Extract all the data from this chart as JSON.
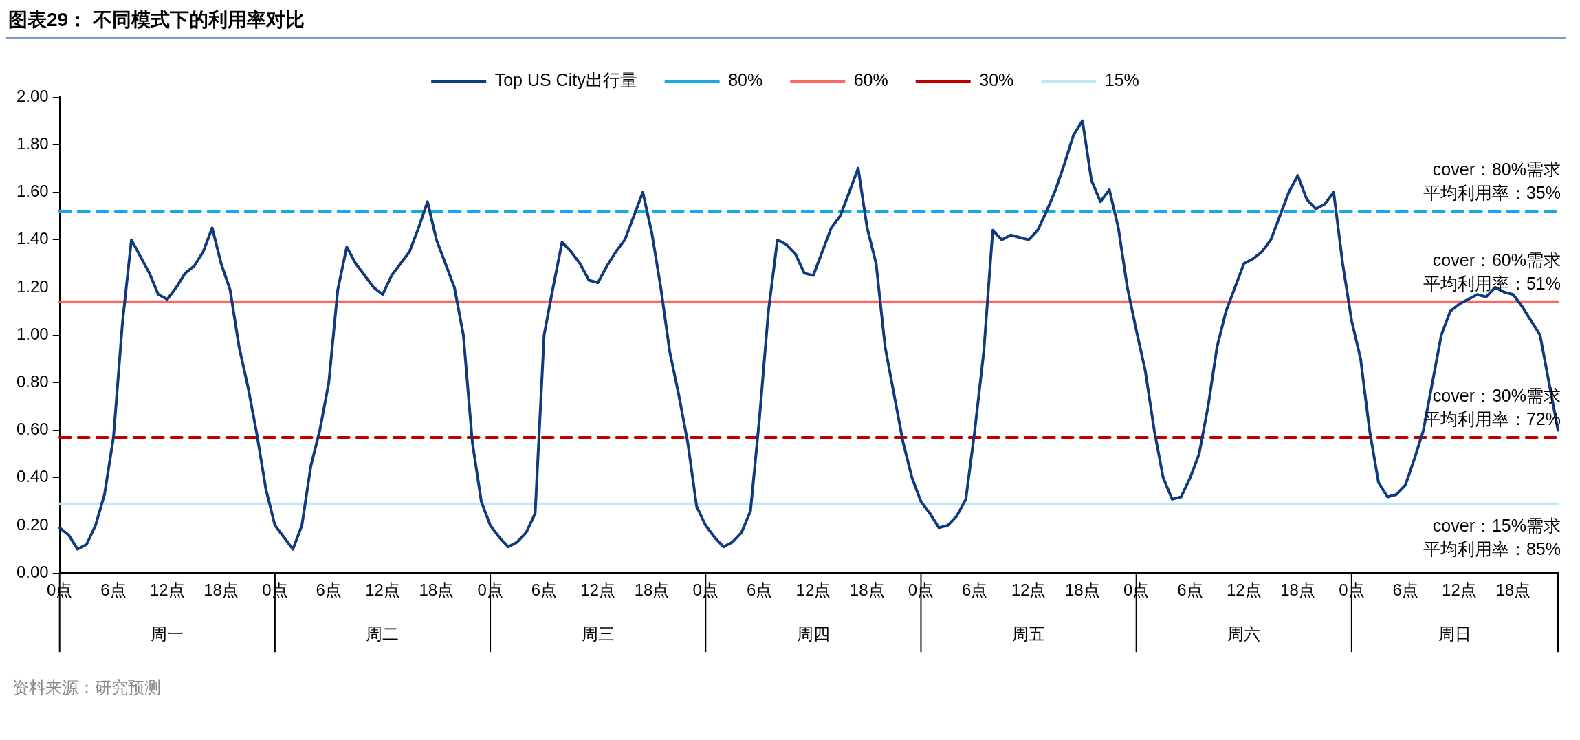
{
  "chart_data": {
    "type": "line",
    "title": "图表29：  不同模式下的利用率对比",
    "categories": [
      "0点",
      null,
      null,
      null,
      null,
      null,
      "6点",
      null,
      null,
      null,
      null,
      null,
      "12点",
      null,
      null,
      null,
      null,
      null,
      "18点",
      null,
      null,
      null,
      null,
      null,
      "0点",
      null,
      null,
      null,
      null,
      null,
      "6点",
      null,
      null,
      null,
      null,
      null,
      "12点",
      null,
      null,
      null,
      null,
      null,
      "18点",
      null,
      null,
      null,
      null,
      null,
      "0点",
      null,
      null,
      null,
      null,
      null,
      "6点",
      null,
      null,
      null,
      null,
      null,
      "12点",
      null,
      null,
      null,
      null,
      null,
      "18点",
      null,
      null,
      null,
      null,
      null,
      "0点",
      null,
      null,
      null,
      null,
      null,
      "6点",
      null,
      null,
      null,
      null,
      null,
      "12点",
      null,
      null,
      null,
      null,
      null,
      "18点",
      null,
      null,
      null,
      null,
      null,
      "0点",
      null,
      null,
      null,
      null,
      null,
      "6点",
      null,
      null,
      null,
      null,
      null,
      "12点",
      null,
      null,
      null,
      null,
      null,
      "18点",
      null,
      null,
      null,
      null,
      null,
      "0点",
      null,
      null,
      null,
      null,
      null,
      "6点",
      null,
      null,
      null,
      null,
      null,
      "12点",
      null,
      null,
      null,
      null,
      null,
      "18点",
      null,
      null,
      null,
      null,
      null,
      "0点",
      null,
      null,
      null,
      null,
      null,
      "6点",
      null,
      null,
      null,
      null,
      null,
      "12点",
      null,
      null,
      null,
      null,
      null,
      "18点",
      null,
      null,
      null,
      null,
      null
    ],
    "series": [
      {
        "name": "Top US City出行量",
        "color": "#0f3b7d",
        "values": [
          0.19,
          0.16,
          0.1,
          0.12,
          0.2,
          0.33,
          0.57,
          1.05,
          1.4,
          1.33,
          1.26,
          1.17,
          1.15,
          1.2,
          1.26,
          1.29,
          1.35,
          1.45,
          1.3,
          1.19,
          0.95,
          0.78,
          0.58,
          0.35,
          0.2,
          0.15,
          0.1,
          0.2,
          0.45,
          0.6,
          0.8,
          1.19,
          1.37,
          1.3,
          1.25,
          1.2,
          1.17,
          1.25,
          1.3,
          1.35,
          1.45,
          1.56,
          1.4,
          1.3,
          1.2,
          1.0,
          0.55,
          0.3,
          0.2,
          0.15,
          0.11,
          0.13,
          0.17,
          0.25,
          1.0,
          1.2,
          1.39,
          1.35,
          1.3,
          1.23,
          1.22,
          1.29,
          1.35,
          1.4,
          1.5,
          1.6,
          1.43,
          1.2,
          0.93,
          0.75,
          0.55,
          0.28,
          0.2,
          0.15,
          0.11,
          0.13,
          0.17,
          0.26,
          0.65,
          1.1,
          1.4,
          1.38,
          1.34,
          1.26,
          1.25,
          1.35,
          1.45,
          1.5,
          1.6,
          1.7,
          1.45,
          1.3,
          0.95,
          0.75,
          0.55,
          0.4,
          0.3,
          0.25,
          0.19,
          0.2,
          0.24,
          0.31,
          0.6,
          0.93,
          1.44,
          1.4,
          1.42,
          1.41,
          1.4,
          1.44,
          1.52,
          1.61,
          1.72,
          1.84,
          1.9,
          1.65,
          1.56,
          1.61,
          1.45,
          1.2,
          1.02,
          0.85,
          0.6,
          0.4,
          0.31,
          0.32,
          0.4,
          0.5,
          0.7,
          0.95,
          1.1,
          1.2,
          1.3,
          1.32,
          1.35,
          1.4,
          1.5,
          1.6,
          1.67,
          1.57,
          1.53,
          1.55,
          1.6,
          1.3,
          1.06,
          0.9,
          0.6,
          0.38,
          0.32,
          0.33,
          0.37,
          0.48,
          0.6,
          0.8,
          1.0,
          1.1,
          1.13,
          1.15,
          1.17,
          1.16,
          1.2,
          1.18,
          1.17,
          1.12,
          1.06,
          1.0,
          0.8,
          0.6
        ]
      },
      {
        "name": "80%",
        "color": "#1aa7e6",
        "line_style": "dashed",
        "values": [
          1.52,
          1.52,
          1.52,
          1.52,
          1.52,
          1.52,
          1.52,
          1.52,
          1.52,
          1.52,
          1.52,
          1.52,
          1.52,
          1.52,
          1.52,
          1.52,
          1.52,
          1.52,
          1.52,
          1.52,
          1.52,
          1.52,
          1.52,
          1.52,
          1.52,
          1.52,
          1.52,
          1.52,
          1.52,
          1.52,
          1.52,
          1.52,
          1.52,
          1.52,
          1.52,
          1.52,
          1.52,
          1.52,
          1.52,
          1.52,
          1.52,
          1.52,
          1.52,
          1.52,
          1.52,
          1.52,
          1.52,
          1.52,
          1.52,
          1.52,
          1.52,
          1.52,
          1.52,
          1.52,
          1.52,
          1.52,
          1.52,
          1.52,
          1.52,
          1.52,
          1.52,
          1.52,
          1.52,
          1.52,
          1.52,
          1.52,
          1.52,
          1.52,
          1.52,
          1.52,
          1.52,
          1.52,
          1.52,
          1.52,
          1.52,
          1.52,
          1.52,
          1.52,
          1.52,
          1.52,
          1.52,
          1.52,
          1.52,
          1.52,
          1.52,
          1.52,
          1.52,
          1.52,
          1.52,
          1.52,
          1.52,
          1.52,
          1.52,
          1.52,
          1.52,
          1.52,
          1.52,
          1.52,
          1.52,
          1.52,
          1.52,
          1.52,
          1.52,
          1.52,
          1.52,
          1.52,
          1.52,
          1.52,
          1.52,
          1.52,
          1.52,
          1.52,
          1.52,
          1.52,
          1.52,
          1.52,
          1.52,
          1.52,
          1.52,
          1.52,
          1.52,
          1.52,
          1.52,
          1.52,
          1.52,
          1.52,
          1.52,
          1.52,
          1.52,
          1.52,
          1.52,
          1.52,
          1.52,
          1.52,
          1.52,
          1.52,
          1.52,
          1.52,
          1.52,
          1.52,
          1.52,
          1.52,
          1.52,
          1.52,
          1.52,
          1.52,
          1.52,
          1.52,
          1.52,
          1.52,
          1.52,
          1.52,
          1.52,
          1.52,
          1.52,
          1.52,
          1.52,
          1.52,
          1.52,
          1.52,
          1.52,
          1.52,
          1.52,
          1.52,
          1.52,
          1.52,
          1.52,
          1.52
        ]
      },
      {
        "name": "60%",
        "color": "#ff6666",
        "line_style": "solid",
        "values": [
          1.14,
          1.14,
          1.14,
          1.14,
          1.14,
          1.14,
          1.14,
          1.14,
          1.14,
          1.14,
          1.14,
          1.14,
          1.14,
          1.14,
          1.14,
          1.14,
          1.14,
          1.14,
          1.14,
          1.14,
          1.14,
          1.14,
          1.14,
          1.14,
          1.14,
          1.14,
          1.14,
          1.14,
          1.14,
          1.14,
          1.14,
          1.14,
          1.14,
          1.14,
          1.14,
          1.14,
          1.14,
          1.14,
          1.14,
          1.14,
          1.14,
          1.14,
          1.14,
          1.14,
          1.14,
          1.14,
          1.14,
          1.14,
          1.14,
          1.14,
          1.14,
          1.14,
          1.14,
          1.14,
          1.14,
          1.14,
          1.14,
          1.14,
          1.14,
          1.14,
          1.14,
          1.14,
          1.14,
          1.14,
          1.14,
          1.14,
          1.14,
          1.14,
          1.14,
          1.14,
          1.14,
          1.14,
          1.14,
          1.14,
          1.14,
          1.14,
          1.14,
          1.14,
          1.14,
          1.14,
          1.14,
          1.14,
          1.14,
          1.14,
          1.14,
          1.14,
          1.14,
          1.14,
          1.14,
          1.14,
          1.14,
          1.14,
          1.14,
          1.14,
          1.14,
          1.14,
          1.14,
          1.14,
          1.14,
          1.14,
          1.14,
          1.14,
          1.14,
          1.14,
          1.14,
          1.14,
          1.14,
          1.14,
          1.14,
          1.14,
          1.14,
          1.14,
          1.14,
          1.14,
          1.14,
          1.14,
          1.14,
          1.14,
          1.14,
          1.14,
          1.14,
          1.14,
          1.14,
          1.14,
          1.14,
          1.14,
          1.14,
          1.14,
          1.14,
          1.14,
          1.14,
          1.14,
          1.14,
          1.14,
          1.14,
          1.14,
          1.14,
          1.14,
          1.14,
          1.14,
          1.14,
          1.14,
          1.14,
          1.14,
          1.14,
          1.14,
          1.14,
          1.14,
          1.14,
          1.14,
          1.14,
          1.14,
          1.14,
          1.14,
          1.14,
          1.14,
          1.14,
          1.14,
          1.14,
          1.14,
          1.14,
          1.14,
          1.14,
          1.14,
          1.14,
          1.14,
          1.14,
          1.14
        ]
      },
      {
        "name": "30%",
        "color": "#c00000",
        "line_style": "dashed",
        "values": [
          0.57,
          0.57,
          0.57,
          0.57,
          0.57,
          0.57,
          0.57,
          0.57,
          0.57,
          0.57,
          0.57,
          0.57,
          0.57,
          0.57,
          0.57,
          0.57,
          0.57,
          0.57,
          0.57,
          0.57,
          0.57,
          0.57,
          0.57,
          0.57,
          0.57,
          0.57,
          0.57,
          0.57,
          0.57,
          0.57,
          0.57,
          0.57,
          0.57,
          0.57,
          0.57,
          0.57,
          0.57,
          0.57,
          0.57,
          0.57,
          0.57,
          0.57,
          0.57,
          0.57,
          0.57,
          0.57,
          0.57,
          0.57,
          0.57,
          0.57,
          0.57,
          0.57,
          0.57,
          0.57,
          0.57,
          0.57,
          0.57,
          0.57,
          0.57,
          0.57,
          0.57,
          0.57,
          0.57,
          0.57,
          0.57,
          0.57,
          0.57,
          0.57,
          0.57,
          0.57,
          0.57,
          0.57,
          0.57,
          0.57,
          0.57,
          0.57,
          0.57,
          0.57,
          0.57,
          0.57,
          0.57,
          0.57,
          0.57,
          0.57,
          0.57,
          0.57,
          0.57,
          0.57,
          0.57,
          0.57,
          0.57,
          0.57,
          0.57,
          0.57,
          0.57,
          0.57,
          0.57,
          0.57,
          0.57,
          0.57,
          0.57,
          0.57,
          0.57,
          0.57,
          0.57,
          0.57,
          0.57,
          0.57,
          0.57,
          0.57,
          0.57,
          0.57,
          0.57,
          0.57,
          0.57,
          0.57,
          0.57,
          0.57,
          0.57,
          0.57,
          0.57,
          0.57,
          0.57,
          0.57,
          0.57,
          0.57,
          0.57,
          0.57,
          0.57,
          0.57,
          0.57,
          0.57,
          0.57,
          0.57,
          0.57,
          0.57,
          0.57,
          0.57,
          0.57,
          0.57,
          0.57,
          0.57,
          0.57,
          0.57,
          0.57,
          0.57,
          0.57,
          0.57,
          0.57,
          0.57,
          0.57,
          0.57,
          0.57,
          0.57,
          0.57,
          0.57,
          0.57,
          0.57,
          0.57,
          0.57,
          0.57,
          0.57,
          0.57,
          0.57,
          0.57,
          0.57,
          0.57,
          0.57
        ]
      },
      {
        "name": "15%",
        "color": "#bfe8f7",
        "line_style": "solid",
        "values": [
          0.29,
          0.29,
          0.29,
          0.29,
          0.29,
          0.29,
          0.29,
          0.29,
          0.29,
          0.29,
          0.29,
          0.29,
          0.29,
          0.29,
          0.29,
          0.29,
          0.29,
          0.29,
          0.29,
          0.29,
          0.29,
          0.29,
          0.29,
          0.29,
          0.29,
          0.29,
          0.29,
          0.29,
          0.29,
          0.29,
          0.29,
          0.29,
          0.29,
          0.29,
          0.29,
          0.29,
          0.29,
          0.29,
          0.29,
          0.29,
          0.29,
          0.29,
          0.29,
          0.29,
          0.29,
          0.29,
          0.29,
          0.29,
          0.29,
          0.29,
          0.29,
          0.29,
          0.29,
          0.29,
          0.29,
          0.29,
          0.29,
          0.29,
          0.29,
          0.29,
          0.29,
          0.29,
          0.29,
          0.29,
          0.29,
          0.29,
          0.29,
          0.29,
          0.29,
          0.29,
          0.29,
          0.29,
          0.29,
          0.29,
          0.29,
          0.29,
          0.29,
          0.29,
          0.29,
          0.29,
          0.29,
          0.29,
          0.29,
          0.29,
          0.29,
          0.29,
          0.29,
          0.29,
          0.29,
          0.29,
          0.29,
          0.29,
          0.29,
          0.29,
          0.29,
          0.29,
          0.29,
          0.29,
          0.29,
          0.29,
          0.29,
          0.29,
          0.29,
          0.29,
          0.29,
          0.29,
          0.29,
          0.29,
          0.29,
          0.29,
          0.29,
          0.29,
          0.29,
          0.29,
          0.29,
          0.29,
          0.29,
          0.29,
          0.29,
          0.29,
          0.29,
          0.29,
          0.29,
          0.29,
          0.29,
          0.29,
          0.29,
          0.29,
          0.29,
          0.29,
          0.29,
          0.29,
          0.29,
          0.29,
          0.29,
          0.29,
          0.29,
          0.29,
          0.29,
          0.29,
          0.29,
          0.29,
          0.29,
          0.29,
          0.29,
          0.29,
          0.29,
          0.29,
          0.29,
          0.29,
          0.29,
          0.29,
          0.29,
          0.29,
          0.29,
          0.29,
          0.29,
          0.29,
          0.29,
          0.29,
          0.29,
          0.29,
          0.29,
          0.29,
          0.29,
          0.29,
          0.29,
          0.29
        ]
      }
    ],
    "annotations": [
      "资料来源：研究预测",
      "周一",
      "周二",
      "周三",
      "周四",
      "周五",
      "周六",
      "周日",
      "cover：80%需求平均利用率：35%",
      "cover：60%需求平均利用率：51%",
      "cover：30%需求平均利用率：72%",
      "cover：15%需求平均利用率：85%"
    ],
    "ylim": [
      0,
      2
    ],
    "yticks": [
      {
        "value": 0,
        "label": "0.00"
      },
      {
        "value": 0.2,
        "label": "0.20"
      },
      {
        "value": 0.4,
        "label": "0.40"
      },
      {
        "value": 0.6,
        "label": "0.60"
      },
      {
        "value": 0.8,
        "label": "0.80"
      },
      {
        "value": 1,
        "label": "1.00"
      },
      {
        "value": 1.2,
        "label": "1.20"
      },
      {
        "value": 1.4,
        "label": "1.40"
      },
      {
        "value": 1.6,
        "label": "1.60"
      },
      {
        "value": 1.8,
        "label": "1.80"
      },
      {
        "value": 2,
        "label": "2.00"
      }
    ],
    "legend": "top",
    "line_style": "solid"
  }
}
